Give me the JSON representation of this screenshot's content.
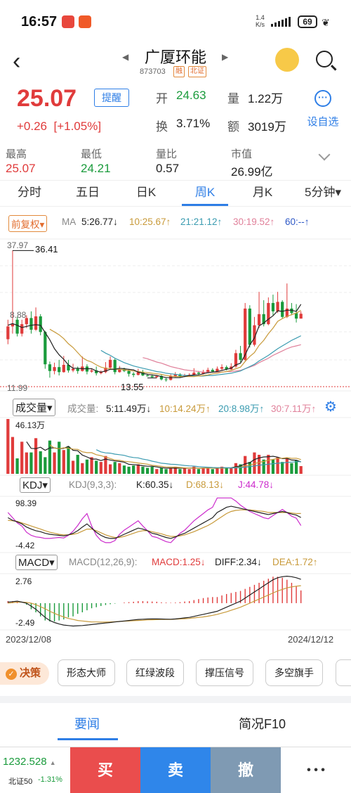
{
  "status": {
    "time": "16:57",
    "net_speed": "1.4",
    "net_unit": "K/s",
    "battery": "69"
  },
  "header": {
    "title": "广厦环能",
    "code": "873703",
    "tag1": "融",
    "tag2": "北证"
  },
  "quote": {
    "price": "25.07",
    "change": "+0.26",
    "change_pct": "[+1.05%]",
    "remind": "提醒",
    "open_label": "开",
    "open": "24.63",
    "volume_label": "量",
    "volume": "1.22万",
    "turnover_label": "换",
    "turnover": "3.71%",
    "amount_label": "额",
    "amount": "3019万",
    "self_select": "设自选",
    "high_label": "最高",
    "high": "25.07",
    "low_label": "最低",
    "low": "24.21",
    "vr_label": "量比",
    "vr": "0.57",
    "mcap_label": "市值",
    "mcap": "26.99亿"
  },
  "tabs": [
    "分时",
    "五日",
    "日K",
    "周K",
    "月K",
    "5分钟▾"
  ],
  "active_tab": "周K",
  "ma_row": {
    "fq": "前复权▾",
    "ma": "MA",
    "ma5": "5:26.77↓",
    "ma10": "10:25.67↑",
    "ma21": "21:21.12↑",
    "ma30": "30:19.52↑",
    "ma60": "60:--↑"
  },
  "kline_labels": {
    "top": "37.97",
    "hi": "36.41",
    "mid": "8.88",
    "low": "13.55",
    "bottom": "11.99"
  },
  "vol_row": {
    "btn": "成交量▾",
    "label": "成交量:",
    "v5": "5:11.49万↓",
    "v10": "10:14.24万↑",
    "v20": "20:8.98万↑",
    "v30": "30:7.11万↑",
    "max": "46.13万"
  },
  "kdj_row": {
    "btn": "KDJ▾",
    "params": "KDJ(9,3,3):",
    "k": "K:60.35↓",
    "d": "D:68.13↓",
    "j": "J:44.78↓",
    "top": "98.39",
    "bottom": "-4.42"
  },
  "macd_row": {
    "btn": "MACD▾",
    "params": "MACD(12,26,9):",
    "macd": "MACD:1.25↓",
    "diff": "DIFF:2.34↓",
    "dea": "DEA:1.72↑",
    "top": "2.76",
    "bottom": "-2.49"
  },
  "dates": {
    "start": "2023/12/08",
    "end": "2024/12/12"
  },
  "tools": {
    "decide": "决策",
    "items": [
      "形态大师",
      "红绿波段",
      "撑压信号",
      "多空旗手"
    ]
  },
  "news_tabs": [
    "要闻",
    "简况F10"
  ],
  "bottom": {
    "index_value": "1232.528",
    "index_name": "北证50",
    "index_change": "-1.31%",
    "buy": "买",
    "sell": "卖",
    "cancel": "撤",
    "more": "• • •"
  },
  "colors": {
    "up": "#e03b3b",
    "down": "#1a9b3c",
    "accent": "#2e7ee6",
    "ma5": "#222222",
    "ma10": "#c89a3a",
    "ma21": "#3a9bb0",
    "ma30": "#e0809a"
  },
  "chart_data": {
    "type": "candlestick",
    "price_range": [
      11.99,
      37.97
    ],
    "candles": [
      [
        20.5,
        22.8,
        19.6,
        24.0
      ],
      [
        22.8,
        23.2,
        21.5,
        36.41
      ],
      [
        24.0,
        21.5,
        21.0,
        24.5
      ],
      [
        21.5,
        23.2,
        21.0,
        24.0
      ],
      [
        23.2,
        24.3,
        22.5,
        24.8
      ],
      [
        24.3,
        22.2,
        21.5,
        25.5
      ],
      [
        22.2,
        24.6,
        22.0,
        26.2
      ],
      [
        24.6,
        21.8,
        21.2,
        25.0
      ],
      [
        21.8,
        16.0,
        15.2,
        22.0
      ],
      [
        16.0,
        14.8,
        13.6,
        16.5
      ],
      [
        14.8,
        15.5,
        14.2,
        16.3
      ],
      [
        15.5,
        14.6,
        14.0,
        16.8
      ],
      [
        14.6,
        15.9,
        14.5,
        17.5
      ],
      [
        15.9,
        14.9,
        14.5,
        16.8
      ],
      [
        14.9,
        15.2,
        14.6,
        16.1
      ],
      [
        15.2,
        14.8,
        14.3,
        15.6
      ],
      [
        14.8,
        15.6,
        14.7,
        17.4
      ],
      [
        15.6,
        14.7,
        14.2,
        16.0
      ],
      [
        14.7,
        14.9,
        14.5,
        15.3
      ],
      [
        14.9,
        14.4,
        14.0,
        15.6
      ],
      [
        14.4,
        14.6,
        14.2,
        14.9
      ],
      [
        14.6,
        15.4,
        14.4,
        16.4
      ],
      [
        15.4,
        16.8,
        15.2,
        17.4
      ],
      [
        16.8,
        14.6,
        14.2,
        17.0
      ],
      [
        14.6,
        15.1,
        14.5,
        15.7
      ],
      [
        15.1,
        14.8,
        14.6,
        15.4
      ],
      [
        14.8,
        14.3,
        13.8,
        15.1
      ],
      [
        14.3,
        14.1,
        13.7,
        14.6
      ],
      [
        14.1,
        14.6,
        14.0,
        15.2
      ],
      [
        14.6,
        14.0,
        13.9,
        15.0
      ],
      [
        14.0,
        13.9,
        13.8,
        14.3
      ],
      [
        13.9,
        13.7,
        13.6,
        14.2
      ],
      [
        13.7,
        13.9,
        13.55,
        14.0
      ],
      [
        13.9,
        13.3,
        13.1,
        14.1
      ],
      [
        13.3,
        13.2,
        12.9,
        13.6
      ],
      [
        13.2,
        13.9,
        13.1,
        14.2
      ],
      [
        13.9,
        14.2,
        13.7,
        14.6
      ],
      [
        14.2,
        13.8,
        13.6,
        14.4
      ],
      [
        13.8,
        13.9,
        13.7,
        14.3
      ],
      [
        13.9,
        14.1,
        13.8,
        14.4
      ],
      [
        14.1,
        14.5,
        13.9,
        15.3
      ],
      [
        14.5,
        14.3,
        14.1,
        14.8
      ],
      [
        14.3,
        14.6,
        14.2,
        15.0
      ],
      [
        14.6,
        15.0,
        14.4,
        15.4
      ],
      [
        15.0,
        14.7,
        14.5,
        15.3
      ],
      [
        14.7,
        15.2,
        14.6,
        15.6
      ],
      [
        15.2,
        15.5,
        14.9,
        16.0
      ],
      [
        15.5,
        15.1,
        14.9,
        15.8
      ],
      [
        15.1,
        15.6,
        15.0,
        16.2
      ],
      [
        15.6,
        18.0,
        15.4,
        18.6
      ],
      [
        18.0,
        16.8,
        16.4,
        19.3
      ],
      [
        16.8,
        26.0,
        16.6,
        27.0
      ],
      [
        26.0,
        19.5,
        19.0,
        26.6
      ],
      [
        19.5,
        23.0,
        19.2,
        24.5
      ],
      [
        23.0,
        25.0,
        22.5,
        29.0
      ],
      [
        25.0,
        23.2,
        22.8,
        27.5
      ],
      [
        23.2,
        27.0,
        23.0,
        28.0
      ],
      [
        27.0,
        25.5,
        24.8,
        28.5
      ],
      [
        25.5,
        27.2,
        25.2,
        29.0
      ],
      [
        27.2,
        24.5,
        24.2,
        27.5
      ],
      [
        24.5,
        26.0,
        24.3,
        30.5
      ],
      [
        26.0,
        25.2,
        24.8,
        27.0
      ],
      [
        25.2,
        24.2,
        23.5,
        26.8
      ],
      [
        24.2,
        25.07,
        24.21,
        25.5
      ]
    ],
    "volumes": [
      46.13,
      31,
      13,
      27,
      18,
      18,
      30,
      19,
      14,
      28,
      18,
      27,
      20,
      23,
      11,
      16,
      9,
      12,
      14,
      11,
      10,
      15,
      8,
      10,
      9,
      7,
      6,
      7,
      8,
      6,
      5,
      6,
      4,
      5,
      4,
      5,
      6,
      4,
      5,
      4,
      6,
      4,
      5,
      5,
      4,
      5,
      6,
      5,
      5,
      9,
      8,
      15,
      10,
      18,
      16,
      12,
      16,
      12,
      14,
      10,
      13,
      9,
      11.5,
      6.5
    ],
    "ma5": [
      23.0,
      23.3,
      23.0,
      22.6,
      22.8,
      23.0,
      23.1,
      23.0,
      21.7,
      20.4,
      18.8,
      17.7,
      16.9,
      15.9,
      15.3,
      15.3,
      15.2,
      15.2,
      15.2,
      14.8,
      14.6,
      14.8,
      15.1,
      15.1,
      15.3,
      15.2,
      15.1,
      15.0,
      14.6,
      14.4,
      14.2,
      14.1,
      14.0,
      13.8,
      13.6,
      13.6,
      13.6,
      13.6,
      13.8,
      14.0,
      14.1,
      14.1,
      14.3,
      14.5,
      14.6,
      14.7,
      14.9,
      15.1,
      15.3,
      15.9,
      16.2,
      17.7,
      19.5,
      20.7,
      22.9,
      23.4,
      24.1,
      24.7,
      25.6,
      25.5,
      25.7,
      25.7,
      25.5,
      26.77
    ],
    "ma10": [
      null,
      null,
      null,
      null,
      null,
      null,
      null,
      null,
      null,
      22.3,
      21.8,
      21.3,
      20.6,
      19.7,
      19.0,
      18.1,
      17.2,
      16.7,
      16.4,
      15.9,
      15.5,
      15.3,
      15.2,
      15.1,
      15.1,
      15.0,
      14.9,
      14.8,
      14.7,
      14.6,
      14.5,
      14.4,
      14.3,
      14.2,
      14.0,
      13.9,
      13.8,
      13.8,
      13.8,
      13.8,
      13.8,
      13.9,
      14.0,
      14.1,
      14.3,
      14.4,
      14.6,
      14.7,
      14.9,
      15.2,
      15.5,
      16.5,
      17.4,
      18.1,
      19.4,
      20.3,
      21.5,
      22.5,
      23.7,
      24.2,
      24.6,
      24.9,
      25.2,
      25.67
    ],
    "ma21": [
      null,
      null,
      null,
      null,
      null,
      null,
      null,
      null,
      null,
      null,
      null,
      null,
      null,
      null,
      null,
      null,
      null,
      null,
      null,
      null,
      18.5,
      18.0,
      17.6,
      17.1,
      16.7,
      16.3,
      16.0,
      15.7,
      15.5,
      15.3,
      15.1,
      14.9,
      14.7,
      14.6,
      14.4,
      14.3,
      14.2,
      14.1,
      14.0,
      14.0,
      13.9,
      13.9,
      13.9,
      14.0,
      14.0,
      14.1,
      14.2,
      14.3,
      14.4,
      14.6,
      14.8,
      15.2,
      15.6,
      16.0,
      16.6,
      17.1,
      17.6,
      18.2,
      18.8,
      19.3,
      19.8,
      20.3,
      20.7,
      21.12
    ],
    "ma30": [
      null,
      null,
      null,
      null,
      null,
      null,
      null,
      null,
      null,
      null,
      null,
      null,
      null,
      null,
      null,
      null,
      null,
      null,
      null,
      null,
      null,
      null,
      null,
      null,
      null,
      null,
      null,
      null,
      null,
      17.2,
      17.0,
      16.7,
      16.4,
      16.2,
      15.9,
      15.6,
      15.4,
      15.2,
      15.0,
      14.9,
      14.8,
      14.7,
      14.6,
      14.6,
      14.6,
      14.6,
      14.6,
      14.7,
      14.7,
      14.8,
      14.9,
      15.2,
      15.5,
      15.8,
      16.3,
      16.7,
      17.1,
      17.6,
      18.0,
      18.4,
      18.8,
      19.1,
      19.3,
      19.52
    ],
    "kdj_range": [
      -4.42,
      98.39
    ],
    "k": [
      60,
      55,
      52,
      48,
      42,
      38,
      35,
      33,
      30,
      28,
      27,
      26,
      25,
      27,
      30,
      35,
      42,
      48,
      40,
      32,
      26,
      22,
      20,
      20,
      24,
      28,
      32,
      36,
      40,
      38,
      35,
      30,
      28,
      25,
      22,
      20,
      23,
      27,
      30,
      35,
      40,
      45,
      50,
      55,
      60,
      70,
      75,
      80,
      82,
      80,
      78,
      76,
      74,
      72,
      70,
      68,
      66,
      68,
      70,
      72,
      70,
      67,
      65,
      60.35
    ],
    "d": [
      55,
      54,
      53,
      50,
      47,
      44,
      41,
      38,
      35,
      32,
      30,
      28,
      27,
      27,
      28,
      30,
      34,
      38,
      38,
      35,
      31,
      27,
      24,
      22,
      22,
      24,
      27,
      30,
      33,
      35,
      35,
      33,
      31,
      29,
      26,
      24,
      24,
      25,
      27,
      30,
      33,
      37,
      41,
      45,
      50,
      56,
      62,
      68,
      72,
      74,
      75,
      75,
      75,
      74,
      73,
      72,
      70,
      70,
      70,
      70,
      70,
      69,
      68,
      68.13
    ],
    "j": [
      70,
      60,
      50,
      44,
      32,
      26,
      23,
      22,
      20,
      20,
      21,
      22,
      21,
      26,
      34,
      45,
      58,
      68,
      44,
      26,
      16,
      12,
      12,
      16,
      28,
      36,
      42,
      48,
      54,
      44,
      35,
      24,
      22,
      18,
      14,
      12,
      21,
      30,
      36,
      45,
      54,
      61,
      68,
      75,
      80,
      98,
      98,
      98,
      98,
      92,
      84,
      78,
      72,
      68,
      64,
      60,
      58,
      64,
      70,
      76,
      70,
      63,
      59,
      44.78
    ],
    "macd_range": [
      -2.49,
      2.76
    ],
    "dif": [
      0.1,
      0.15,
      0.2,
      0.1,
      0.0,
      -0.3,
      -0.6,
      -1.0,
      -1.4,
      -1.7,
      -1.9,
      -2.05,
      -2.15,
      -2.2,
      -2.25,
      -2.22,
      -2.2,
      -2.15,
      -2.1,
      -2.05,
      -2.0,
      -1.95,
      -1.9,
      -1.85,
      -1.8,
      -1.75,
      -1.7,
      -1.65,
      -1.6,
      -1.58,
      -1.56,
      -1.55,
      -1.55,
      -1.56,
      -1.57,
      -1.58,
      -1.55,
      -1.5,
      -1.45,
      -1.4,
      -1.3,
      -1.2,
      -1.1,
      -1.0,
      -0.9,
      -0.8,
      -0.6,
      -0.4,
      -0.2,
      0.0,
      0.2,
      0.5,
      0.8,
      1.1,
      1.4,
      1.7,
      2.0,
      2.3,
      2.5,
      2.6,
      2.65,
      2.6,
      2.5,
      2.34
    ],
    "dea": [
      0.0,
      0.05,
      0.1,
      0.1,
      0.08,
      0.0,
      -0.15,
      -0.35,
      -0.55,
      -0.8,
      -1.0,
      -1.2,
      -1.35,
      -1.5,
      -1.6,
      -1.7,
      -1.75,
      -1.8,
      -1.85,
      -1.85,
      -1.86,
      -1.86,
      -1.85,
      -1.83,
      -1.8,
      -1.78,
      -1.75,
      -1.72,
      -1.7,
      -1.68,
      -1.65,
      -1.63,
      -1.62,
      -1.6,
      -1.6,
      -1.6,
      -1.58,
      -1.55,
      -1.53,
      -1.5,
      -1.45,
      -1.4,
      -1.35,
      -1.28,
      -1.2,
      -1.1,
      -0.98,
      -0.85,
      -0.7,
      -0.55,
      -0.4,
      -0.2,
      0.0,
      0.2,
      0.4,
      0.6,
      0.8,
      1.0,
      1.2,
      1.35,
      1.5,
      1.6,
      1.67,
      1.72
    ],
    "macd": [
      0.2,
      0.2,
      0.2,
      0.0,
      -0.16,
      -0.6,
      -0.9,
      -1.3,
      -1.7,
      -1.8,
      -1.8,
      -1.7,
      -1.6,
      -1.4,
      -1.3,
      -1.05,
      -0.9,
      -0.7,
      -0.5,
      -0.4,
      -0.28,
      -0.18,
      -0.1,
      -0.04,
      0.0,
      0.06,
      0.1,
      0.14,
      0.2,
      0.2,
      0.18,
      0.16,
      0.14,
      0.08,
      0.06,
      0.04,
      0.06,
      0.1,
      0.16,
      0.2,
      0.3,
      0.4,
      0.5,
      0.56,
      0.6,
      0.6,
      0.76,
      0.9,
      1.0,
      1.1,
      1.2,
      1.4,
      1.6,
      1.8,
      2.0,
      2.2,
      2.4,
      2.6,
      2.6,
      2.5,
      2.3,
      2.0,
      1.66,
      1.25
    ]
  }
}
